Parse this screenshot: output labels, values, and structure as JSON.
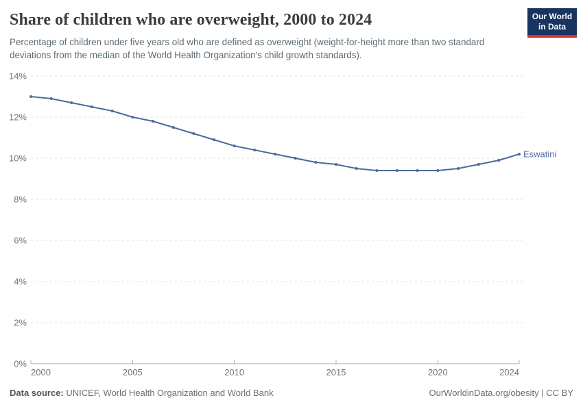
{
  "header": {
    "title": "Share of children who are overweight, 2000 to 2024",
    "subtitle": "Percentage of children under five years old who are defined as overweight (weight-for-height more than two standard deviations from the median of the World Health Organization's child growth standards).",
    "logo": {
      "line1": "Our World",
      "line2": "in Data"
    }
  },
  "footer": {
    "datasource_label": "Data source:",
    "datasource_value": "UNICEF, World Health Organization and World Bank",
    "attribution": "OurWorldinData.org/obesity | CC BY"
  },
  "colors": {
    "series_blue": "#4C6A9C",
    "logo_navy": "#18355f",
    "logo_red": "#d5332b",
    "gridline": "#e0e0e0",
    "axis_line": "#a8a8a8",
    "tick_label": "#6d767c",
    "title_text": "#383d40",
    "subtitle_text": "#5e6c74"
  },
  "chart_data": {
    "type": "line",
    "title": "Share of children who are overweight, 2000 to 2024",
    "xlabel": "",
    "ylabel": "",
    "xlim": [
      2000,
      2024
    ],
    "ylim": [
      0,
      14
    ],
    "grid": "horizontal-dashed",
    "legend_position": "end-of-line-label",
    "x_ticks": [
      2000,
      2005,
      2010,
      2015,
      2020,
      2024
    ],
    "x_tick_labels": [
      "2000",
      "2005",
      "2010",
      "2015",
      "2020",
      "2024"
    ],
    "y_ticks": [
      0,
      2,
      4,
      6,
      8,
      10,
      12,
      14
    ],
    "y_tick_labels": [
      "0%",
      "2%",
      "4%",
      "6%",
      "8%",
      "10%",
      "12%",
      "14%"
    ],
    "x": [
      2000,
      2001,
      2002,
      2003,
      2004,
      2005,
      2006,
      2007,
      2008,
      2009,
      2010,
      2011,
      2012,
      2013,
      2014,
      2015,
      2016,
      2017,
      2018,
      2019,
      2020,
      2021,
      2022,
      2023,
      2024
    ],
    "series": [
      {
        "name": "Eswatini",
        "color": "#4C6A9C",
        "values": [
          13.0,
          12.9,
          12.7,
          12.5,
          12.3,
          12.0,
          11.8,
          11.5,
          11.2,
          10.9,
          10.6,
          10.4,
          10.2,
          10.0,
          9.8,
          9.7,
          9.5,
          9.4,
          9.4,
          9.4,
          9.4,
          9.5,
          9.7,
          9.9,
          10.2
        ]
      }
    ]
  }
}
